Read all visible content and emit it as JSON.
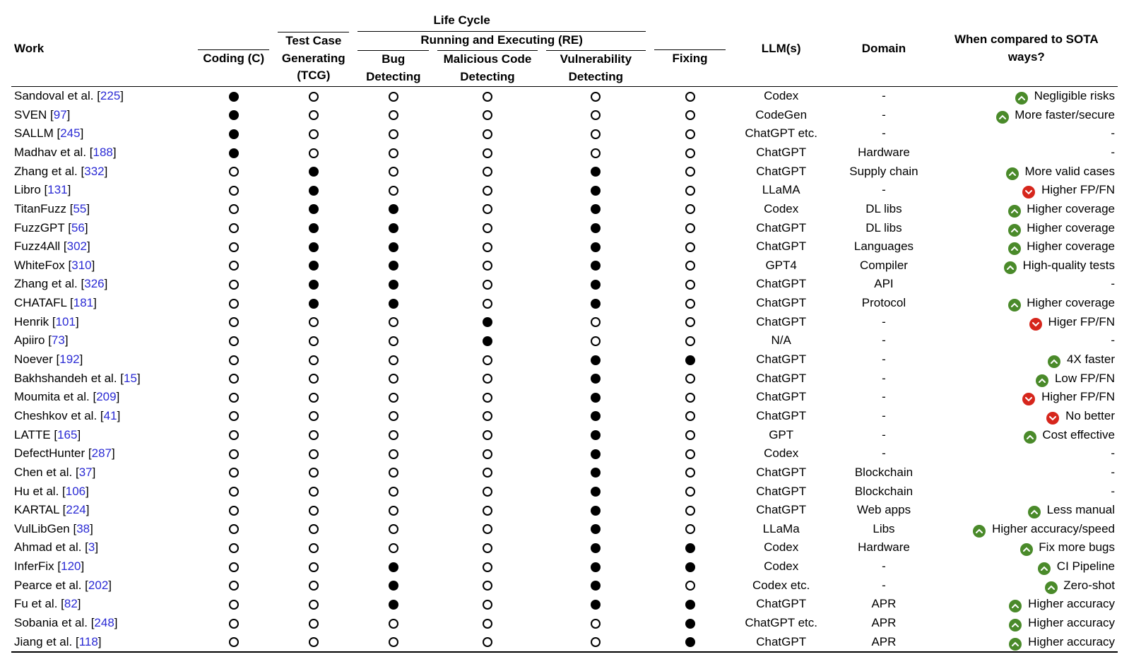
{
  "colors": {
    "ref_link": "#2a2ad4",
    "indicator_up": "#4a8a2a",
    "indicator_down": "#d6261c",
    "marker_fill": "#000000",
    "marker_stroke": "#000000",
    "rule": "#000000",
    "background": "#ffffff",
    "text": "#000000"
  },
  "typography": {
    "base_fontsize_pt": 13,
    "header_fontweight": "bold",
    "font_family": "sans-serif"
  },
  "layout": {
    "type": "table",
    "col_widths_pct": [
      16,
      7,
      7,
      7,
      9.5,
      9.5,
      7,
      9,
      9,
      16
    ]
  },
  "headers": {
    "work": "Work",
    "lifecycle": "Life Cycle",
    "coding": "Coding (C)",
    "tcg": "Test Case Generating (TCG)",
    "re": "Running and Executing (RE)",
    "bug": "Bug Detecting",
    "malicious": "Malicious Code Detecting",
    "vuln": "Vulnerability Detecting",
    "fixing": "Fixing",
    "llms": "LLM(s)",
    "domain": "Domain",
    "sota": "When compared to SOTA ways?"
  },
  "marker_legend": {
    "filled": "●  present",
    "empty": "○  absent"
  },
  "rows": [
    {
      "work": "Sandoval et al.",
      "ref": "225",
      "m": [
        1,
        0,
        0,
        0,
        0,
        0
      ],
      "llm": "Codex",
      "domain": "-",
      "sota": {
        "dir": "up",
        "text": "Negligible risks"
      }
    },
    {
      "work": "SVEN",
      "ref": "97",
      "m": [
        1,
        0,
        0,
        0,
        0,
        0
      ],
      "llm": "CodeGen",
      "domain": "-",
      "sota": {
        "dir": "up",
        "text": "More faster/secure"
      }
    },
    {
      "work": "SALLM",
      "ref": "245",
      "m": [
        1,
        0,
        0,
        0,
        0,
        0
      ],
      "llm": "ChatGPT etc.",
      "domain": "-",
      "sota": null
    },
    {
      "work": "Madhav et al.",
      "ref": "188",
      "m": [
        1,
        0,
        0,
        0,
        0,
        0
      ],
      "llm": "ChatGPT",
      "domain": "Hardware",
      "sota": null
    },
    {
      "work": "Zhang et al.",
      "ref": "332",
      "m": [
        0,
        1,
        0,
        0,
        1,
        0
      ],
      "llm": "ChatGPT",
      "domain": "Supply chain",
      "sota": {
        "dir": "up",
        "text": "More valid cases"
      }
    },
    {
      "work": "Libro",
      "ref": "131",
      "m": [
        0,
        1,
        0,
        0,
        1,
        0
      ],
      "llm": "LLaMA",
      "domain": "-",
      "sota": {
        "dir": "down",
        "text": "Higher FP/FN"
      }
    },
    {
      "work": "TitanFuzz",
      "ref": "55",
      "m": [
        0,
        1,
        1,
        0,
        1,
        0
      ],
      "llm": "Codex",
      "domain": "DL libs",
      "sota": {
        "dir": "up",
        "text": "Higher coverage"
      }
    },
    {
      "work": "FuzzGPT",
      "ref": "56",
      "m": [
        0,
        1,
        1,
        0,
        1,
        0
      ],
      "llm": "ChatGPT",
      "domain": "DL libs",
      "sota": {
        "dir": "up",
        "text": "Higher coverage"
      }
    },
    {
      "work": "Fuzz4All",
      "ref": "302",
      "m": [
        0,
        1,
        1,
        0,
        1,
        0
      ],
      "llm": "ChatGPT",
      "domain": "Languages",
      "sota": {
        "dir": "up",
        "text": "Higher coverage"
      }
    },
    {
      "work": "WhiteFox",
      "ref": "310",
      "m": [
        0,
        1,
        1,
        0,
        1,
        0
      ],
      "llm": "GPT4",
      "domain": "Compiler",
      "sota": {
        "dir": "up",
        "text": "High-quality tests"
      }
    },
    {
      "work": "Zhang et al.",
      "ref": "326",
      "m": [
        0,
        1,
        1,
        0,
        1,
        0
      ],
      "llm": "ChatGPT",
      "domain": "API",
      "sota": null
    },
    {
      "work": "CHATAFL",
      "ref": "181",
      "m": [
        0,
        1,
        1,
        0,
        1,
        0
      ],
      "llm": "ChatGPT",
      "domain": "Protocol",
      "sota": {
        "dir": "up",
        "text": "Higher coverage"
      }
    },
    {
      "work": "Henrik",
      "ref": "101",
      "m": [
        0,
        0,
        0,
        1,
        0,
        0
      ],
      "llm": "ChatGPT",
      "domain": "-",
      "sota": {
        "dir": "down",
        "text": "Higer FP/FN"
      }
    },
    {
      "work": "Apiiro",
      "ref": "73",
      "m": [
        0,
        0,
        0,
        1,
        0,
        0
      ],
      "llm": "N/A",
      "domain": "-",
      "sota": null
    },
    {
      "work": "Noever",
      "ref": "192",
      "m": [
        0,
        0,
        0,
        0,
        1,
        1
      ],
      "llm": "ChatGPT",
      "domain": "-",
      "sota": {
        "dir": "up",
        "text": "4X faster"
      }
    },
    {
      "work": "Bakhshandeh et al.",
      "ref": "15",
      "m": [
        0,
        0,
        0,
        0,
        1,
        0
      ],
      "llm": "ChatGPT",
      "domain": "-",
      "sota": {
        "dir": "up",
        "text": "Low FP/FN"
      }
    },
    {
      "work": "Moumita et al.",
      "ref": "209",
      "m": [
        0,
        0,
        0,
        0,
        1,
        0
      ],
      "llm": "ChatGPT",
      "domain": "-",
      "sota": {
        "dir": "down",
        "text": "Higher FP/FN"
      }
    },
    {
      "work": "Cheshkov et al.",
      "ref": "41",
      "m": [
        0,
        0,
        0,
        0,
        1,
        0
      ],
      "llm": "ChatGPT",
      "domain": "-",
      "sota": {
        "dir": "down",
        "text": "No better"
      }
    },
    {
      "work": "LATTE",
      "ref": "165",
      "m": [
        0,
        0,
        0,
        0,
        1,
        0
      ],
      "llm": "GPT",
      "domain": "-",
      "sota": {
        "dir": "up",
        "text": "Cost effective"
      }
    },
    {
      "work": "DefectHunter",
      "ref": "287",
      "m": [
        0,
        0,
        0,
        0,
        1,
        0
      ],
      "llm": "Codex",
      "domain": "-",
      "sota": null
    },
    {
      "work": "Chen et al.",
      "ref": "37",
      "m": [
        0,
        0,
        0,
        0,
        1,
        0
      ],
      "llm": "ChatGPT",
      "domain": "Blockchain",
      "sota": null
    },
    {
      "work": "Hu et al.",
      "ref": "106",
      "m": [
        0,
        0,
        0,
        0,
        1,
        0
      ],
      "llm": "ChatGPT",
      "domain": "Blockchain",
      "sota": null
    },
    {
      "work": "KARTAL",
      "ref": "224",
      "m": [
        0,
        0,
        0,
        0,
        1,
        0
      ],
      "llm": "ChatGPT",
      "domain": "Web apps",
      "sota": {
        "dir": "up",
        "text": "Less manual"
      }
    },
    {
      "work": "VulLibGen",
      "ref": "38",
      "m": [
        0,
        0,
        0,
        0,
        1,
        0
      ],
      "llm": "LLaMa",
      "domain": "Libs",
      "sota": {
        "dir": "up",
        "text": "Higher accuracy/speed"
      }
    },
    {
      "work": "Ahmad et al.",
      "ref": "3",
      "m": [
        0,
        0,
        0,
        0,
        1,
        1
      ],
      "llm": "Codex",
      "domain": "Hardware",
      "sota": {
        "dir": "up",
        "text": "Fix more bugs"
      }
    },
    {
      "work": "InferFix",
      "ref": "120",
      "m": [
        0,
        0,
        1,
        0,
        1,
        1
      ],
      "llm": "Codex",
      "domain": "-",
      "sota": {
        "dir": "up",
        "text": "CI Pipeline"
      }
    },
    {
      "work": "Pearce et al.",
      "ref": "202",
      "m": [
        0,
        0,
        1,
        0,
        1,
        0
      ],
      "llm": "Codex etc.",
      "domain": "-",
      "sota": {
        "dir": "up",
        "text": "Zero-shot"
      }
    },
    {
      "work": "Fu et al.",
      "ref": "82",
      "m": [
        0,
        0,
        1,
        0,
        1,
        1
      ],
      "llm": "ChatGPT",
      "domain": "APR",
      "sota": {
        "dir": "up",
        "text": "Higher accuracy"
      }
    },
    {
      "work": "Sobania et al.",
      "ref": "248",
      "m": [
        0,
        0,
        0,
        0,
        0,
        1
      ],
      "llm": "ChatGPT etc.",
      "domain": "APR",
      "sota": {
        "dir": "up",
        "text": "Higher accuracy"
      }
    },
    {
      "work": "Jiang et al.",
      "ref": "118",
      "m": [
        0,
        0,
        0,
        0,
        0,
        1
      ],
      "llm": "ChatGPT",
      "domain": "APR",
      "sota": {
        "dir": "up",
        "text": "Higher accuracy"
      }
    }
  ]
}
